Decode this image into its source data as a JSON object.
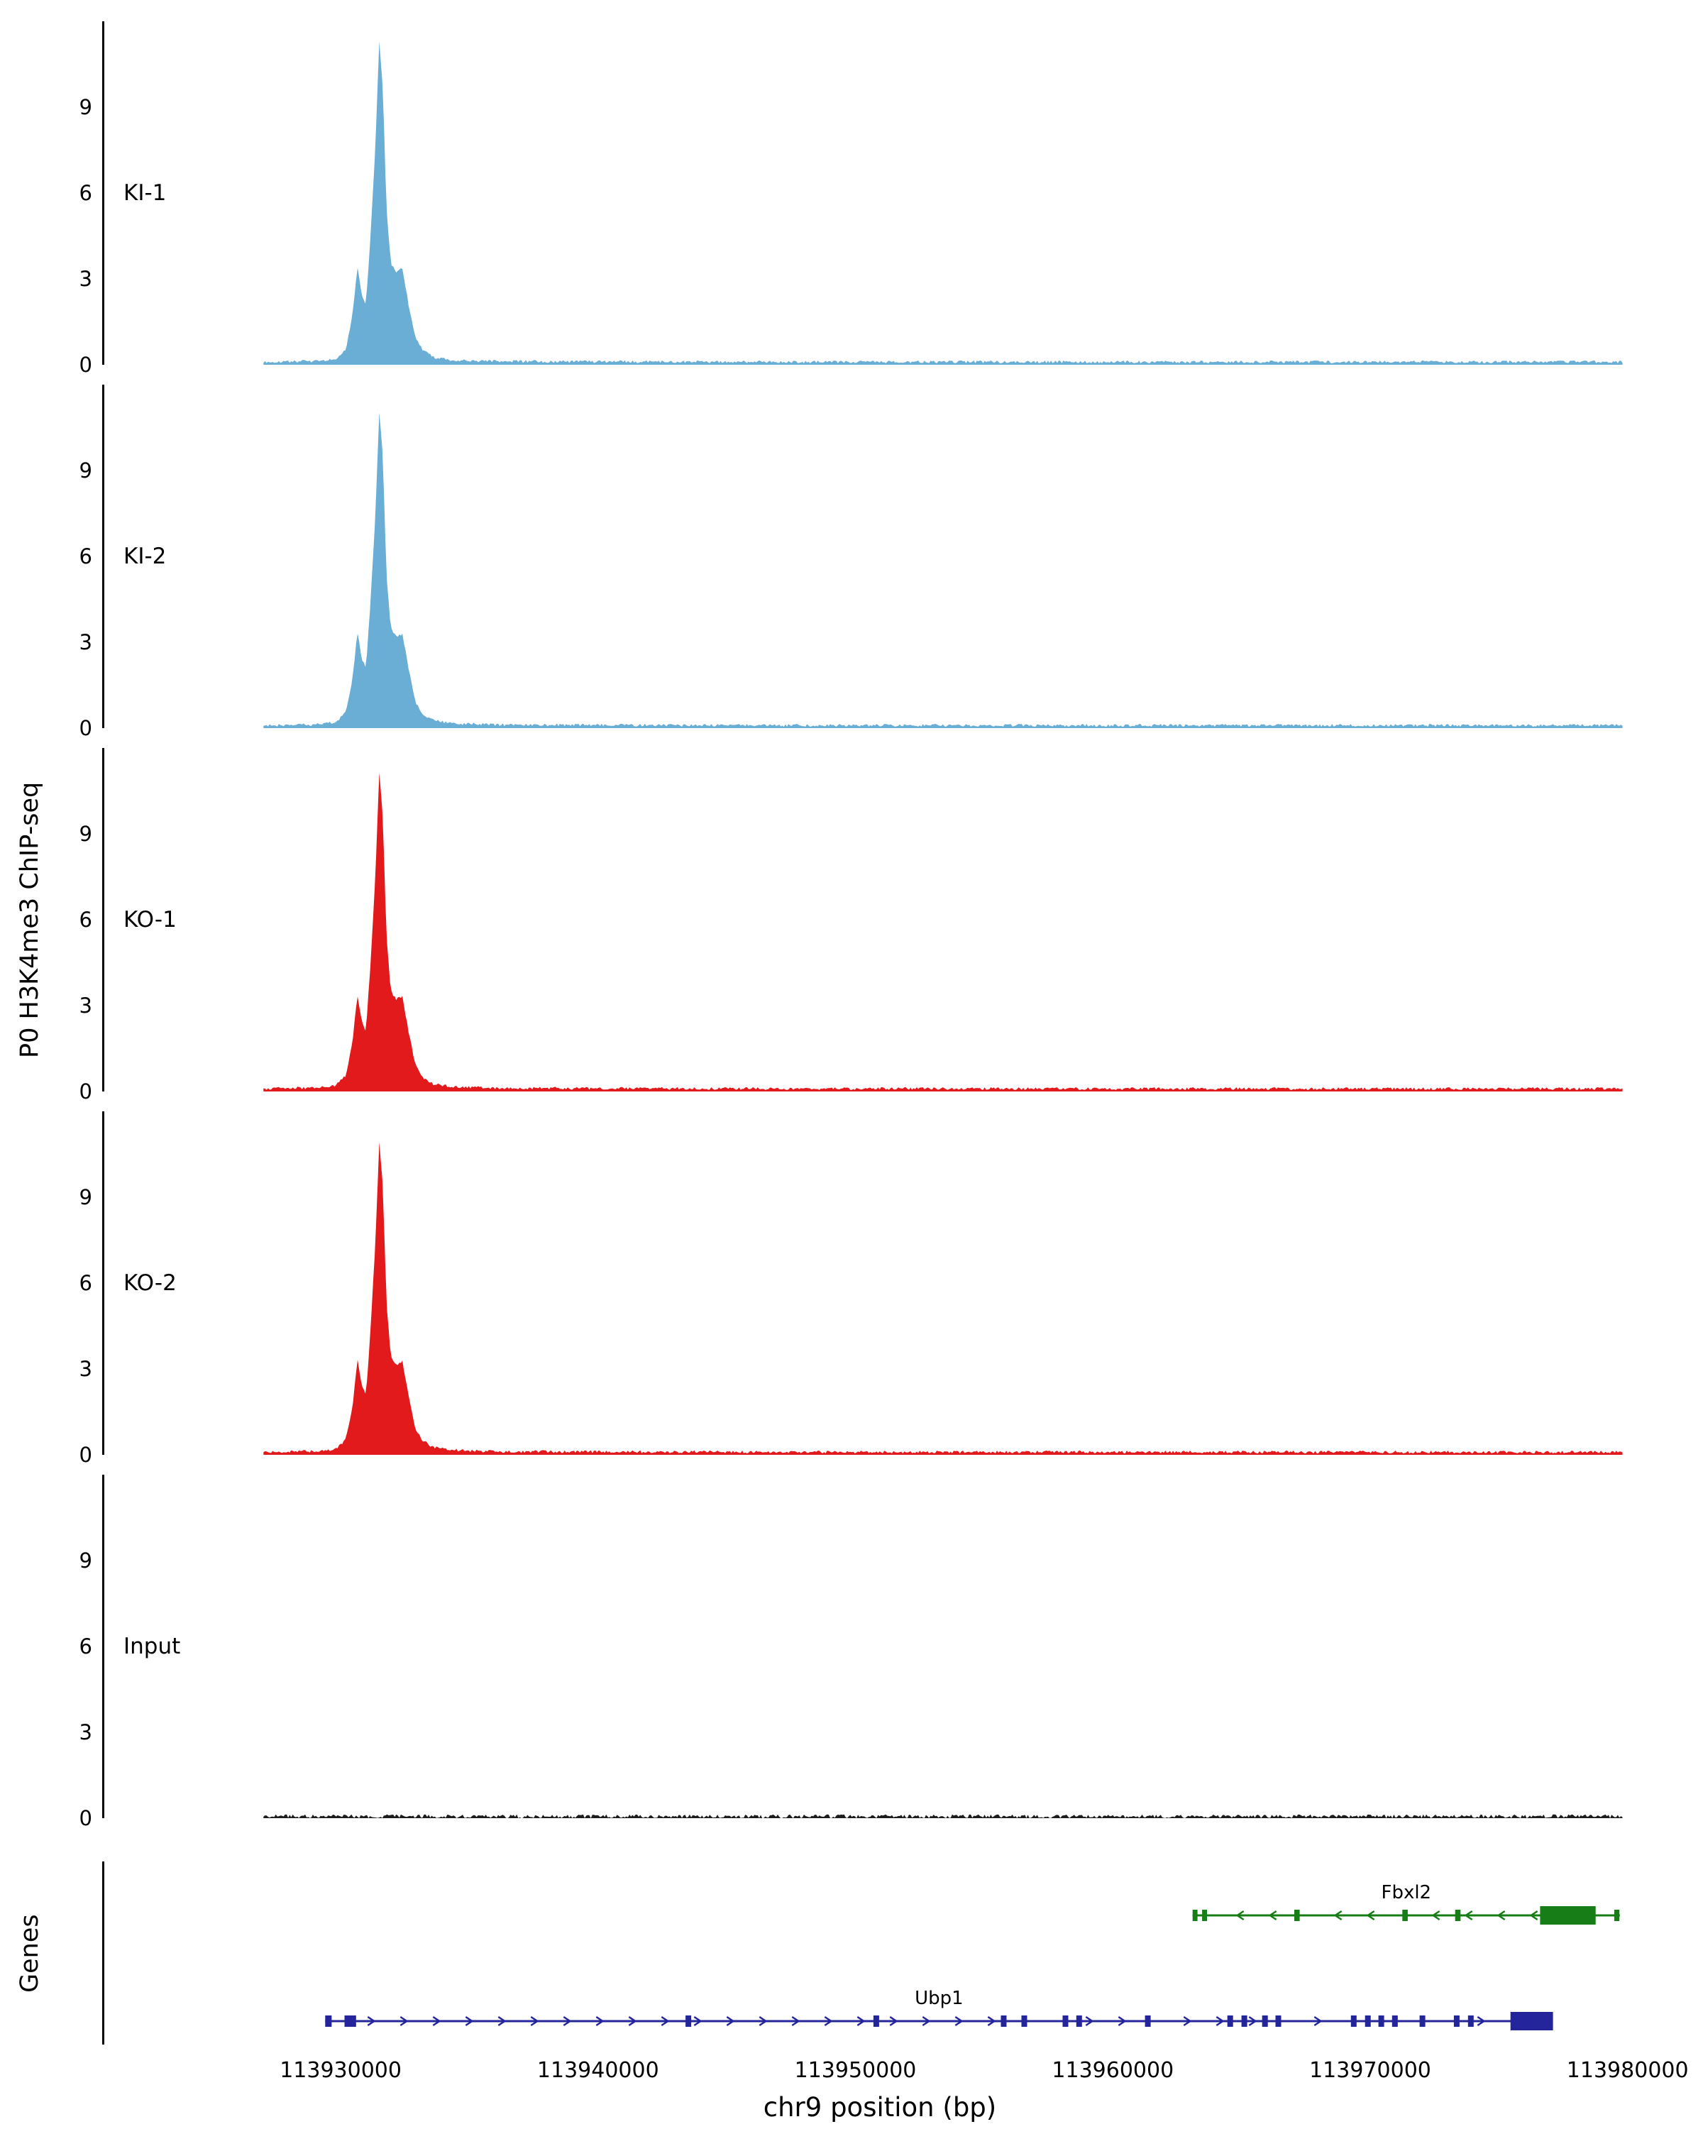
{
  "figure": {
    "y_axis_label": "P0 H3K4me3 ChIP-seq",
    "genes_axis_label": "Genes",
    "x_axis_label": "chr9 position (bp)"
  },
  "chart_data": {
    "type": "area",
    "title": "",
    "xlabel": "chr9 position (bp)",
    "ylabel": "P0 H3K4me3 ChIP-seq",
    "xlim": [
      113920900,
      113981000
    ],
    "data_span": [
      113927000,
      113979800
    ],
    "ylim": [
      0,
      12
    ],
    "yticks": [
      {
        "v": 0,
        "label": "0"
      },
      {
        "v": 3,
        "label": "3"
      },
      {
        "v": 6,
        "label": "6"
      },
      {
        "v": 9,
        "label": "9"
      }
    ],
    "xticks": [
      {
        "pos": 113930000,
        "label": "113930000"
      },
      {
        "pos": 113940000,
        "label": "113940000"
      },
      {
        "pos": 113950000,
        "label": "113950000"
      },
      {
        "pos": 113960000,
        "label": "113960000"
      },
      {
        "pos": 113970000,
        "label": "113970000"
      },
      {
        "pos": 113980000,
        "label": "113980000"
      }
    ],
    "peak_profile": [
      [
        113927000,
        0.05
      ],
      [
        113929000,
        0.08
      ],
      [
        113929800,
        0.15
      ],
      [
        113930200,
        0.5
      ],
      [
        113930450,
        1.6
      ],
      [
        113930650,
        3.4
      ],
      [
        113930820,
        2.4
      ],
      [
        113930980,
        2.1
      ],
      [
        113931150,
        4.3
      ],
      [
        113931350,
        7.6
      ],
      [
        113931500,
        11.2
      ],
      [
        113931640,
        9.6
      ],
      [
        113931780,
        5.4
      ],
      [
        113931950,
        3.5
      ],
      [
        113932150,
        3.2
      ],
      [
        113932400,
        3.3
      ],
      [
        113932650,
        2.0
      ],
      [
        113932900,
        0.9
      ],
      [
        113933200,
        0.45
      ],
      [
        113933600,
        0.22
      ],
      [
        113934300,
        0.12
      ],
      [
        113936000,
        0.07
      ],
      [
        113940000,
        0.06
      ],
      [
        113948000,
        0.05
      ],
      [
        113958000,
        0.05
      ],
      [
        113968000,
        0.05
      ],
      [
        113976000,
        0.05
      ],
      [
        113979800,
        0.05
      ]
    ],
    "tracks": [
      {
        "label": "KI-1",
        "color": "#6aaed6",
        "peak_scale": 1.0,
        "noise": 0.1
      },
      {
        "label": "KI-2",
        "color": "#6aaed6",
        "peak_scale": 0.98,
        "noise": 0.1
      },
      {
        "label": "KO-1",
        "color": "#e31a1c",
        "peak_scale": 0.99,
        "noise": 0.1
      },
      {
        "label": "KO-2",
        "color": "#e31a1c",
        "peak_scale": 0.97,
        "noise": 0.1
      },
      {
        "label": "Input",
        "color": "#1c1c1c",
        "peak_scale": 0.0,
        "noise": 0.13
      }
    ],
    "genes": [
      {
        "name": "Fbxl2",
        "strand": "-",
        "color": "#177d17",
        "start": 113963100,
        "end": 113979700,
        "exons": [
          [
            113963100,
            113963290
          ],
          [
            113963470,
            113963660
          ],
          [
            113967050,
            113967260
          ],
          [
            113971250,
            113971460
          ],
          [
            113973300,
            113973510
          ],
          [
            113979480,
            113979680
          ]
        ],
        "thick": [
          113976600,
          113978760
        ]
      },
      {
        "name": "Ubp1",
        "strand": "+",
        "color": "#24249b",
        "start": 113929400,
        "end": 113977100,
        "exons": [
          [
            113929400,
            113929650
          ],
          [
            113930150,
            113930600
          ],
          [
            113943400,
            113943620
          ],
          [
            113950700,
            113950920
          ],
          [
            113955650,
            113955870
          ],
          [
            113956450,
            113956670
          ],
          [
            113958050,
            113958270
          ],
          [
            113958580,
            113958800
          ],
          [
            113961250,
            113961470
          ],
          [
            113964450,
            113964670
          ],
          [
            113965000,
            113965220
          ],
          [
            113965800,
            113966020
          ],
          [
            113966320,
            113966540
          ],
          [
            113969250,
            113969470
          ],
          [
            113969800,
            113970020
          ],
          [
            113970320,
            113970540
          ],
          [
            113970850,
            113971070
          ],
          [
            113971920,
            113972140
          ],
          [
            113973250,
            113973470
          ],
          [
            113973800,
            113974020
          ]
        ],
        "thick": [
          113975450,
          113977100
        ]
      }
    ]
  }
}
